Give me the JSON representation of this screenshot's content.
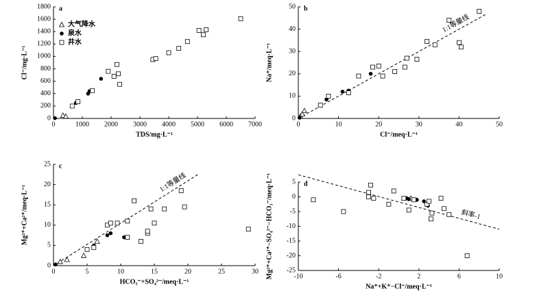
{
  "chart_data": [
    {
      "type": "scatter",
      "title": "a",
      "xlabel": "TDS/mg·L⁻¹",
      "ylabel": "Cl⁻/mg·L⁻¹",
      "xlim": [
        0,
        7000
      ],
      "ylim": [
        0,
        1800
      ],
      "xticks": [
        0,
        1000,
        2000,
        3000,
        4000,
        5000,
        6000,
        7000
      ],
      "yticks": [
        0,
        200,
        400,
        600,
        800,
        1000,
        1200,
        1400,
        1600,
        1800
      ],
      "legend": "upper left",
      "series": [
        {
          "name": "大气降水",
          "marker": "triangle",
          "x": [
            330,
            430
          ],
          "values": [
            50,
            35
          ]
        },
        {
          "name": "泉水",
          "marker": "circle",
          "x": [
            50,
            780,
            1200,
            1250,
            1650
          ],
          "values": [
            5,
            250,
            400,
            440,
            640
          ]
        },
        {
          "name": "井水",
          "marker": "square",
          "x": [
            650,
            850,
            1350,
            1900,
            2100,
            2200,
            2250,
            2300,
            3450,
            3550,
            4000,
            4350,
            4650,
            5050,
            5200,
            5300,
            6500
          ],
          "values": [
            200,
            270,
            450,
            760,
            680,
            870,
            720,
            550,
            950,
            965,
            1060,
            1130,
            1240,
            1420,
            1350,
            1430,
            1610
          ]
        }
      ]
    },
    {
      "type": "scatter",
      "title": "b",
      "xlabel": "Cl⁻/meq·L⁻¹",
      "ylabel": "Na⁺/meq·L⁻¹",
      "xlim": [
        0,
        50
      ],
      "ylim": [
        0,
        50
      ],
      "xticks": [
        0,
        10,
        20,
        30,
        40,
        50
      ],
      "yticks": [
        0,
        10,
        20,
        30,
        40,
        50
      ],
      "ref_line": {
        "x": [
          0,
          47
        ],
        "y": [
          0,
          47
        ],
        "label": "1:1等量线"
      },
      "series": [
        {
          "marker": "triangle",
          "x": [
            0.5,
            1,
            1.5
          ],
          "values": [
            1,
            2,
            3.5
          ]
        },
        {
          "marker": "circle",
          "x": [
            0.3,
            7,
            11,
            12.5,
            18
          ],
          "values": [
            0.3,
            8.5,
            12,
            12.5,
            20
          ]
        },
        {
          "marker": "square",
          "x": [
            5.5,
            7.5,
            12.5,
            15,
            18.5,
            20,
            21,
            24,
            26.5,
            27,
            29.5,
            32,
            34,
            37.5,
            40,
            40.5,
            45
          ],
          "values": [
            6,
            10,
            11.5,
            19,
            23,
            23.5,
            19,
            21,
            23,
            27,
            26.5,
            34.5,
            33,
            44,
            34,
            32,
            48
          ]
        }
      ]
    },
    {
      "type": "scatter",
      "title": "c",
      "xlabel": "HCO₃⁻+SO₄²⁻/meq·L⁻¹",
      "ylabel": "Mg²⁺+Ca²⁺/meq·L⁻¹",
      "xlim": [
        0,
        30
      ],
      "ylim": [
        0,
        25
      ],
      "xticks": [
        0,
        5,
        10,
        15,
        20,
        25,
        30
      ],
      "yticks": [
        0,
        5,
        10,
        15,
        20,
        25
      ],
      "ref_line": {
        "x": [
          0,
          21.5
        ],
        "y": [
          0,
          22.5
        ],
        "label": "1:1等量线"
      },
      "series": [
        {
          "marker": "triangle",
          "x": [
            1,
            2,
            4.5,
            6.5
          ],
          "values": [
            1,
            1.5,
            2.5,
            6
          ]
        },
        {
          "marker": "circle",
          "x": [
            0.3,
            6,
            8,
            8.5,
            10.5
          ],
          "values": [
            0.3,
            5,
            7.5,
            8,
            7
          ]
        },
        {
          "marker": "square",
          "x": [
            5,
            6,
            8,
            8.5,
            9.5,
            11,
            11,
            12,
            13,
            14,
            14,
            14.5,
            15,
            16.5,
            19,
            19.5,
            29
          ],
          "values": [
            4,
            4.5,
            10,
            10.5,
            10.5,
            11,
            7,
            16,
            6,
            8,
            8.5,
            14,
            10.5,
            14,
            18.5,
            14.5,
            9
          ]
        }
      ]
    },
    {
      "type": "scatter",
      "title": "d",
      "xlabel": "Na⁺+K⁺−Cl⁻/meq·L⁻¹",
      "ylabel": "Mg²⁺+Ca²⁺−SO₄²⁻−HCO₃⁻/meq·L⁻¹",
      "xlim": [
        -10,
        10
      ],
      "ylim": [
        -25,
        5
      ],
      "xticks": [
        -10,
        -6,
        -2,
        2,
        6,
        10
      ],
      "yticks": [
        -25,
        -20,
        -15,
        -10,
        -5,
        0,
        5
      ],
      "ref_line": {
        "x": [
          -10,
          10
        ],
        "y": [
          7.5,
          -11
        ],
        "label": "斜率-1"
      },
      "series": [
        {
          "marker": "triangle",
          "x": [
            1.2
          ],
          "values": [
            -0.5
          ]
        },
        {
          "marker": "circle",
          "x": [
            0.8,
            1,
            1.8,
            2.5,
            2.9
          ],
          "values": [
            -0.5,
            -0.8,
            -1,
            -1.5,
            -3
          ]
        },
        {
          "marker": "square",
          "x": [
            -8.5,
            -5.5,
            -3,
            -2.8,
            -2.5,
            -3,
            -1,
            -0.5,
            0.5,
            1,
            1.5,
            2.8,
            3,
            3.2,
            3.3,
            4.2,
            4.5,
            5,
            6.8
          ],
          "values": [
            -1,
            -5,
            1.5,
            4,
            -0.5,
            0,
            -2.5,
            2,
            -0.5,
            -4.5,
            -1,
            -2.5,
            -1.5,
            -7.5,
            -5.5,
            -0.5,
            -4,
            -6,
            -20
          ]
        }
      ]
    }
  ]
}
